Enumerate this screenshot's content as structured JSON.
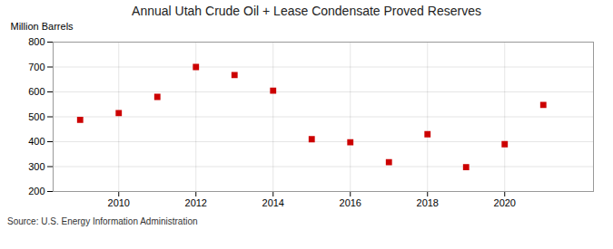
{
  "chart_data": {
    "type": "scatter",
    "title": "Annual Utah Crude Oil + Lease Condensate Proved Reserves",
    "ylabel": "Million Barrels",
    "annotations": [
      "Source: U.S. Energy Information Administration"
    ],
    "x": [
      2009,
      2010,
      2011,
      2012,
      2013,
      2014,
      2015,
      2016,
      2017,
      2018,
      2019,
      2020,
      2021
    ],
    "values": [
      488,
      515,
      580,
      700,
      668,
      605,
      410,
      398,
      318,
      430,
      298,
      390,
      548
    ],
    "color": "#cc0000",
    "marker": "square",
    "xlim": [
      2008.3,
      2022.3
    ],
    "xticks": [
      2010,
      2012,
      2014,
      2016,
      2018,
      2020
    ],
    "ylim": [
      200,
      800
    ],
    "yticks": [
      200,
      300,
      400,
      500,
      600,
      700,
      800
    ],
    "grid": true
  }
}
